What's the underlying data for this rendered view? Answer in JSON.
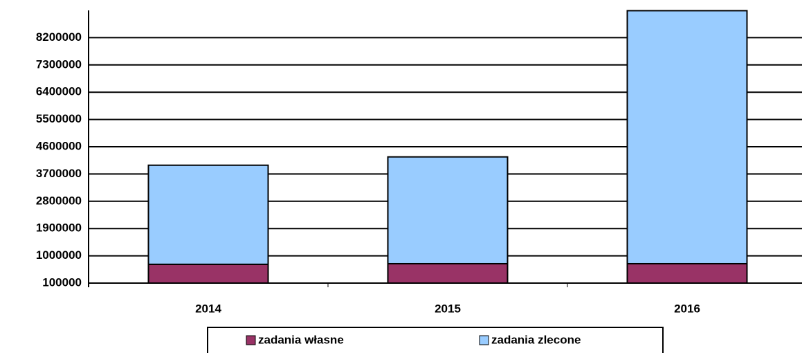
{
  "chart_data": {
    "type": "stacked_bar",
    "categories": [
      "2014",
      "2015",
      "2016"
    ],
    "series": [
      {
        "name": "zadania własne",
        "color": "#993366",
        "values": [
          720000,
          740000,
          740000
        ]
      },
      {
        "name": "zadania zlecone",
        "color": "#99ccff",
        "values": [
          3270000,
          3525000,
          8350000
        ]
      }
    ],
    "ylim": [
      100000,
      9100000
    ],
    "yticks": [
      100000,
      1000000,
      1900000,
      2800000,
      3700000,
      4600000,
      5500000,
      6400000,
      7300000,
      8200000
    ],
    "grid": true,
    "legend": "bottom"
  }
}
